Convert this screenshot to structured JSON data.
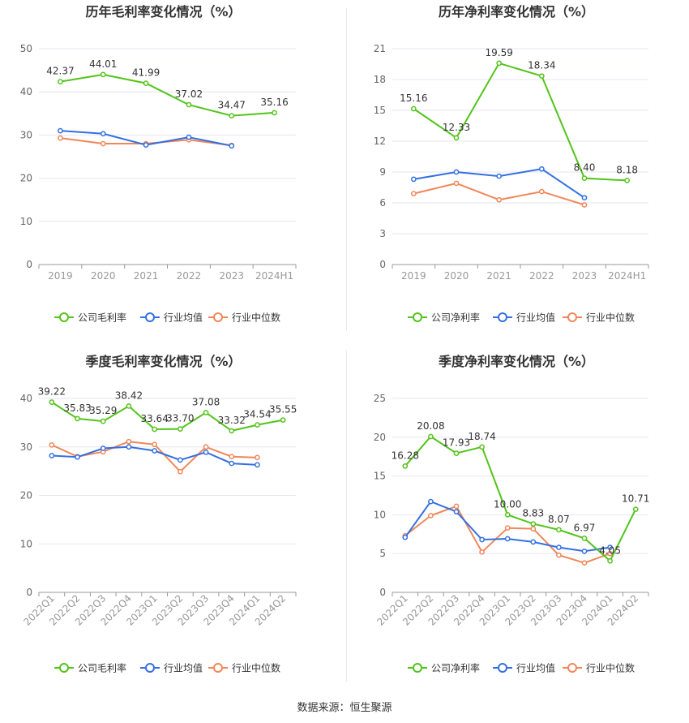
{
  "source_text": "数据来源：恒生聚源",
  "colors": {
    "company": "#52c41a",
    "avg": "#3370e0",
    "median": "#f0875a",
    "grid": "#e6e6f0",
    "axis": "#999999",
    "text": "#333333",
    "label": "#666666"
  },
  "chart_data": [
    {
      "type": "line",
      "title": "历年毛利率变化情况（%）",
      "categories": [
        "2019",
        "2020",
        "2021",
        "2022",
        "2023",
        "2024H1"
      ],
      "ylim": [
        0,
        50
      ],
      "yticks": [
        0,
        10,
        20,
        30,
        40,
        50
      ],
      "xlabel_rotate": false,
      "grid": true,
      "legend_position": "bottom",
      "series": [
        {
          "name": "公司毛利率",
          "key": "company",
          "values": [
            42.37,
            44.01,
            41.99,
            37.02,
            34.47,
            35.16
          ],
          "labels": [
            "42.37",
            "44.01",
            "41.99",
            "37.02",
            "34.47",
            "35.16"
          ]
        },
        {
          "name": "行业均值",
          "key": "avg",
          "values": [
            31.0,
            30.3,
            27.7,
            29.5,
            27.5,
            null
          ]
        },
        {
          "name": "行业中位数",
          "key": "median",
          "values": [
            29.3,
            28.0,
            28.0,
            28.9,
            27.6,
            null
          ]
        }
      ]
    },
    {
      "type": "line",
      "title": "历年净利率变化情况（%）",
      "categories": [
        "2019",
        "2020",
        "2021",
        "2022",
        "2023",
        "2024H1"
      ],
      "ylim": [
        0,
        21
      ],
      "yticks": [
        0,
        3,
        6,
        9,
        12,
        15,
        18,
        21
      ],
      "xlabel_rotate": false,
      "grid": true,
      "legend_position": "bottom",
      "series": [
        {
          "name": "公司净利率",
          "key": "company",
          "values": [
            15.16,
            12.33,
            19.59,
            18.34,
            8.4,
            8.18
          ],
          "labels": [
            "15.16",
            "12.33",
            "19.59",
            "18.34",
            "8.40",
            "8.18"
          ]
        },
        {
          "name": "行业均值",
          "key": "avg",
          "values": [
            8.3,
            9.0,
            8.6,
            9.3,
            6.5,
            null
          ]
        },
        {
          "name": "行业中位数",
          "key": "median",
          "values": [
            6.9,
            7.9,
            6.3,
            7.1,
            5.8,
            null
          ]
        }
      ]
    },
    {
      "type": "line",
      "title": "季度毛利率变化情况（%）",
      "categories": [
        "2022Q1",
        "2022Q2",
        "2022Q3",
        "2022Q4",
        "2023Q1",
        "2023Q2",
        "2023Q3",
        "2023Q4",
        "2024Q1",
        "2024Q2"
      ],
      "ylim": [
        0,
        40
      ],
      "yticks": [
        0,
        10,
        20,
        30,
        40
      ],
      "xlabel_rotate": true,
      "grid": true,
      "legend_position": "bottom",
      "series": [
        {
          "name": "公司毛利率",
          "key": "company",
          "values": [
            39.22,
            35.83,
            35.29,
            38.42,
            33.64,
            33.7,
            37.08,
            33.32,
            34.54,
            35.55
          ],
          "labels": [
            "39.22",
            "35.83",
            "35.29",
            "38.42",
            "33.64",
            "33.70",
            "37.08",
            "33.32",
            "34.54",
            "35.55"
          ]
        },
        {
          "name": "行业均值",
          "key": "avg",
          "values": [
            28.2,
            27.9,
            29.7,
            30.0,
            29.2,
            27.3,
            28.9,
            26.6,
            26.3,
            null
          ]
        },
        {
          "name": "行业中位数",
          "key": "median",
          "values": [
            30.4,
            28.0,
            29.0,
            31.1,
            30.5,
            24.9,
            30.0,
            28.0,
            27.8,
            null
          ]
        }
      ]
    },
    {
      "type": "line",
      "title": "季度净利率变化情况（%）",
      "categories": [
        "2022Q1",
        "2022Q2",
        "2022Q3",
        "2022Q4",
        "2023Q1",
        "2023Q2",
        "2023Q3",
        "2023Q4",
        "2024Q1",
        "2024Q2"
      ],
      "ylim": [
        0,
        25
      ],
      "yticks": [
        0,
        5,
        10,
        15,
        20,
        25
      ],
      "xlabel_rotate": true,
      "grid": true,
      "legend_position": "bottom",
      "series": [
        {
          "name": "公司净利率",
          "key": "company",
          "values": [
            16.28,
            20.08,
            17.93,
            18.74,
            10.0,
            8.83,
            8.07,
            6.97,
            4.05,
            10.71
          ],
          "labels": [
            "16.28",
            "20.08",
            "17.93",
            "18.74",
            "10.00",
            "8.83",
            "8.07",
            "6.97",
            "4.05",
            "10.71"
          ]
        },
        {
          "name": "行业均值",
          "key": "avg",
          "values": [
            7.1,
            11.7,
            10.4,
            6.8,
            6.9,
            6.5,
            5.8,
            5.3,
            5.8,
            null
          ]
        },
        {
          "name": "行业中位数",
          "key": "median",
          "values": [
            7.3,
            9.9,
            11.1,
            5.2,
            8.3,
            8.2,
            4.8,
            3.8,
            5.0,
            null
          ]
        }
      ]
    }
  ]
}
